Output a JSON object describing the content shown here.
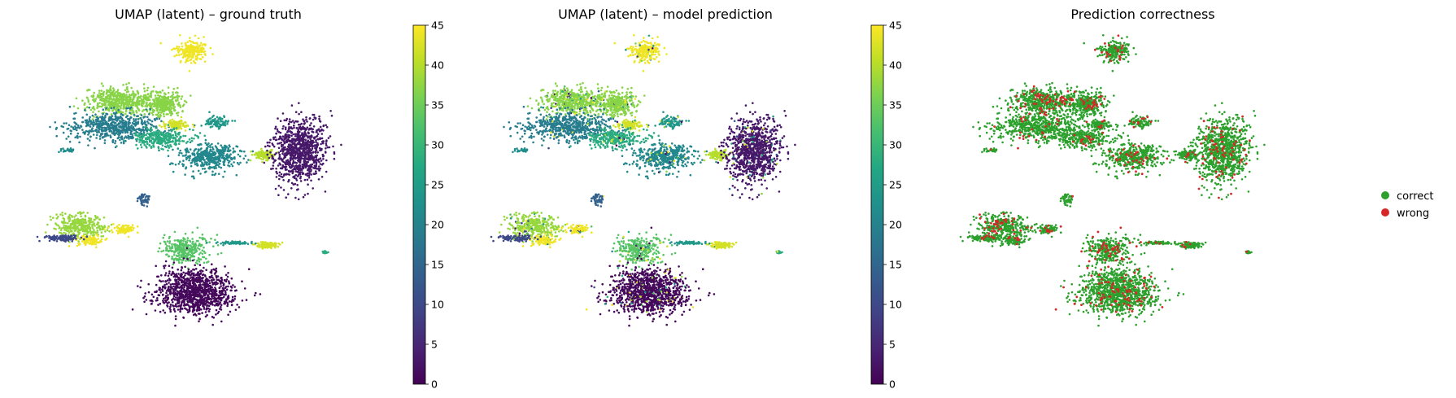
{
  "chart_data": [
    {
      "type": "scatter",
      "title": "UMAP (latent) – ground truth",
      "xlabel": "",
      "ylabel": "",
      "axes_visible": false,
      "colormap": "viridis",
      "colorbar": {
        "min": 0,
        "max": 45,
        "ticks": [
          "0",
          "5",
          "10",
          "15",
          "20",
          "25",
          "30",
          "35",
          "40",
          "45"
        ]
      },
      "clusters": [
        {
          "x": 5.3,
          "y": 9.6,
          "value": 44,
          "spread": [
            0.45,
            0.4
          ],
          "n": 220
        },
        {
          "x": 3.0,
          "y": 7.4,
          "value": 37,
          "spread": [
            1.1,
            0.55
          ],
          "n": 520
        },
        {
          "x": 4.4,
          "y": 7.3,
          "value": 37,
          "spread": [
            0.5,
            0.45
          ],
          "n": 300
        },
        {
          "x": 2.7,
          "y": 6.3,
          "value": 19,
          "spread": [
            1.3,
            0.55
          ],
          "n": 620
        },
        {
          "x": 4.8,
          "y": 6.4,
          "value": 42,
          "spread": [
            0.45,
            0.18
          ],
          "n": 110
        },
        {
          "x": 6.1,
          "y": 6.5,
          "value": 24,
          "spread": [
            0.35,
            0.22
          ],
          "n": 90
        },
        {
          "x": 4.3,
          "y": 5.8,
          "value": 28,
          "spread": [
            0.9,
            0.35
          ],
          "n": 300
        },
        {
          "x": 5.9,
          "y": 5.0,
          "value": 21,
          "spread": [
            0.9,
            0.5
          ],
          "n": 450
        },
        {
          "x": 7.7,
          "y": 5.1,
          "value": 40,
          "spread": [
            0.35,
            0.18
          ],
          "n": 110
        },
        {
          "x": 8.9,
          "y": 5.3,
          "value": 3,
          "spread": [
            0.75,
            1.2
          ],
          "n": 950
        },
        {
          "x": 1.6,
          "y": 2.0,
          "value": 38,
          "spread": [
            0.75,
            0.5
          ],
          "n": 380
        },
        {
          "x": 1.9,
          "y": 1.4,
          "value": 44,
          "spread": [
            0.35,
            0.2
          ],
          "n": 110
        },
        {
          "x": 1.0,
          "y": 1.5,
          "value": 10,
          "spread": [
            0.5,
            0.12
          ],
          "n": 110
        },
        {
          "x": 3.0,
          "y": 1.9,
          "value": 44,
          "spread": [
            0.35,
            0.18
          ],
          "n": 90
        },
        {
          "x": 5.1,
          "y": 1.0,
          "value": 33,
          "spread": [
            0.7,
            0.5
          ],
          "n": 320
        },
        {
          "x": 5.4,
          "y": -0.8,
          "value": 1,
          "spread": [
            1.15,
            0.9
          ],
          "n": 1100
        },
        {
          "x": 7.8,
          "y": 1.2,
          "value": 42,
          "spread": [
            0.35,
            0.12
          ],
          "n": 90
        },
        {
          "x": 6.7,
          "y": 1.3,
          "value": 24,
          "spread": [
            0.55,
            0.06
          ],
          "n": 60
        },
        {
          "x": 3.7,
          "y": 3.2,
          "value": 14,
          "spread": [
            0.18,
            0.25
          ],
          "n": 50
        },
        {
          "x": 1.2,
          "y": 5.3,
          "value": 22,
          "spread": [
            0.18,
            0.1
          ],
          "n": 30
        },
        {
          "x": 9.7,
          "y": 0.9,
          "value": 28,
          "spread": [
            0.1,
            0.05
          ],
          "n": 20
        }
      ]
    },
    {
      "type": "scatter",
      "title": "UMAP (latent) – model prediction",
      "xlabel": "",
      "ylabel": "",
      "axes_visible": false,
      "colormap": "viridis",
      "colorbar": {
        "min": 0,
        "max": 45,
        "ticks": [
          "0",
          "5",
          "10",
          "15",
          "20",
          "25",
          "30",
          "35",
          "40",
          "45"
        ]
      },
      "clusters": "same embedding as ground truth, colored by predicted label"
    },
    {
      "type": "scatter",
      "title": "Prediction correctness",
      "xlabel": "",
      "ylabel": "",
      "axes_visible": false,
      "series": [
        {
          "name": "correct",
          "color": "#2ca02c"
        },
        {
          "name": "wrong",
          "color": "#d62728"
        }
      ],
      "wrong_fraction_by_region": [
        {
          "x": 3.0,
          "y": 7.0,
          "fraction": 0.22
        },
        {
          "x": 5.6,
          "y": 5.4,
          "fraction": 0.18
        },
        {
          "x": 8.4,
          "y": 5.0,
          "fraction": 0.25
        },
        {
          "x": 1.6,
          "y": 2.0,
          "fraction": 0.2
        },
        {
          "x": 5.6,
          "y": 1.0,
          "fraction": 0.2
        }
      ],
      "legend_placement": "right"
    }
  ],
  "legend": {
    "correct_label": "correct",
    "wrong_label": "wrong"
  }
}
